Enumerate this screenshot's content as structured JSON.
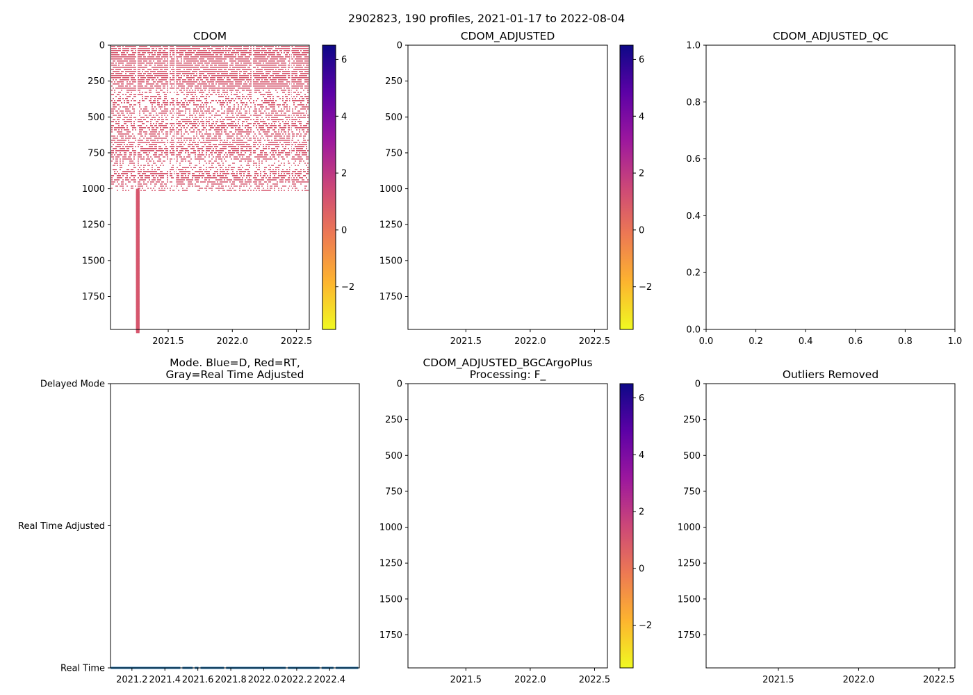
{
  "figure": {
    "suptitle": "2902823, 190 profiles, 2021-01-17 to 2022-08-04"
  },
  "colors": {
    "cmap": [
      "#f0f921",
      "#fdb42f",
      "#ed7953",
      "#cc4778",
      "#9c179e",
      "#5c01a6",
      "#0d0887"
    ],
    "profile_color": "#d6566d",
    "mode_line": "#1f77b4",
    "axis": "#000000"
  },
  "chart_data": [
    {
      "id": "cdom",
      "type": "heatmap",
      "title": "CDOM",
      "xlim": [
        2021.05,
        2022.6
      ],
      "ylim": [
        1980,
        0
      ],
      "xticks": [
        2021.5,
        2022.0,
        2022.5
      ],
      "xtick_labels": [
        "2021.5",
        "2022.0",
        "2022.5"
      ],
      "yticks": [
        0,
        250,
        500,
        750,
        1000,
        1250,
        1500,
        1750
      ],
      "ytick_labels": [
        "0",
        "250",
        "500",
        "750",
        "1000",
        "1250",
        "1500",
        "1750"
      ],
      "dense_band_depth": [
        0,
        1020
      ],
      "deep_profile": {
        "x": 2021.26,
        "depth": [
          1000,
          1980
        ]
      },
      "value_approx": 0.6,
      "colorbar": {
        "range": [
          -3.5,
          6.5
        ],
        "ticks": [
          -2,
          0,
          2,
          4,
          6
        ],
        "tick_labels": [
          "−2",
          "0",
          "2",
          "4",
          "6"
        ]
      }
    },
    {
      "id": "cdom_adjusted",
      "type": "heatmap",
      "title": "CDOM_ADJUSTED",
      "xlim": [
        2021.05,
        2022.6
      ],
      "ylim": [
        1980,
        0
      ],
      "xticks": [
        2021.5,
        2022.0,
        2022.5
      ],
      "xtick_labels": [
        "2021.5",
        "2022.0",
        "2022.5"
      ],
      "yticks": [
        0,
        250,
        500,
        750,
        1000,
        1250,
        1500,
        1750
      ],
      "ytick_labels": [
        "0",
        "250",
        "500",
        "750",
        "1000",
        "1250",
        "1500",
        "1750"
      ],
      "colorbar": {
        "range": [
          -3.5,
          6.5
        ],
        "ticks": [
          -2,
          0,
          2,
          4,
          6
        ],
        "tick_labels": [
          "−2",
          "0",
          "2",
          "4",
          "6"
        ]
      }
    },
    {
      "id": "cdom_adjusted_qc",
      "type": "scatter",
      "title": "CDOM_ADJUSTED_QC",
      "xlim": [
        0,
        1
      ],
      "ylim": [
        0,
        1
      ],
      "xticks": [
        0,
        0.2,
        0.4,
        0.6,
        0.8,
        1.0
      ],
      "xtick_labels": [
        "0.0",
        "0.2",
        "0.4",
        "0.6",
        "0.8",
        "1.0"
      ],
      "yticks": [
        0,
        0.2,
        0.4,
        0.6,
        0.8,
        1.0
      ],
      "ytick_labels": [
        "0.0",
        "0.2",
        "0.4",
        "0.6",
        "0.8",
        "1.0"
      ]
    },
    {
      "id": "mode",
      "type": "line",
      "title": "Mode. Blue=D, Red=RT,\nGray=Real Time Adjusted",
      "xlim": [
        2021.07,
        2022.58
      ],
      "ylim": [
        0,
        2
      ],
      "xticks": [
        2021.2,
        2021.4,
        2021.6,
        2021.8,
        2022.0,
        2022.2,
        2022.4
      ],
      "xtick_labels": [
        "2021.2",
        "2021.4",
        "2021.6",
        "2021.8",
        "2022.0",
        "2022.2",
        "2022.4"
      ],
      "yticks": [
        0,
        1,
        2
      ],
      "ytick_labels": [
        "Real Time",
        "Real Time Adjusted",
        "Delayed Mode"
      ],
      "series": [
        {
          "name": "Real Time",
          "y": 0,
          "x_start": 2021.07,
          "x_end": 2022.58,
          "gaps": [
            2021.5,
            2021.575,
            2021.61,
            2021.765,
            2022.14,
            2022.345,
            2022.43
          ]
        }
      ]
    },
    {
      "id": "bgcargoplus",
      "type": "heatmap",
      "title": "CDOM_ADJUSTED_BGCArgoPlus\nProcessing: F_",
      "xlim": [
        2021.05,
        2022.6
      ],
      "ylim": [
        1980,
        0
      ],
      "xticks": [
        2021.5,
        2022.0,
        2022.5
      ],
      "xtick_labels": [
        "2021.5",
        "2022.0",
        "2022.5"
      ],
      "yticks": [
        0,
        250,
        500,
        750,
        1000,
        1250,
        1500,
        1750
      ],
      "ytick_labels": [
        "0",
        "250",
        "500",
        "750",
        "1000",
        "1250",
        "1500",
        "1750"
      ],
      "colorbar": {
        "range": [
          -3.5,
          6.5
        ],
        "ticks": [
          -2,
          0,
          2,
          4,
          6
        ],
        "tick_labels": [
          "−2",
          "0",
          "2",
          "4",
          "6"
        ]
      }
    },
    {
      "id": "outliers",
      "type": "heatmap",
      "title": "Outliers Removed",
      "xlim": [
        2021.05,
        2022.6
      ],
      "ylim": [
        1980,
        0
      ],
      "xticks": [
        2021.5,
        2022.0,
        2022.5
      ],
      "xtick_labels": [
        "2021.5",
        "2022.0",
        "2022.5"
      ],
      "yticks": [
        0,
        250,
        500,
        750,
        1000,
        1250,
        1500,
        1750
      ],
      "ytick_labels": [
        "0",
        "250",
        "500",
        "750",
        "1000",
        "1250",
        "1500",
        "1750"
      ]
    }
  ]
}
